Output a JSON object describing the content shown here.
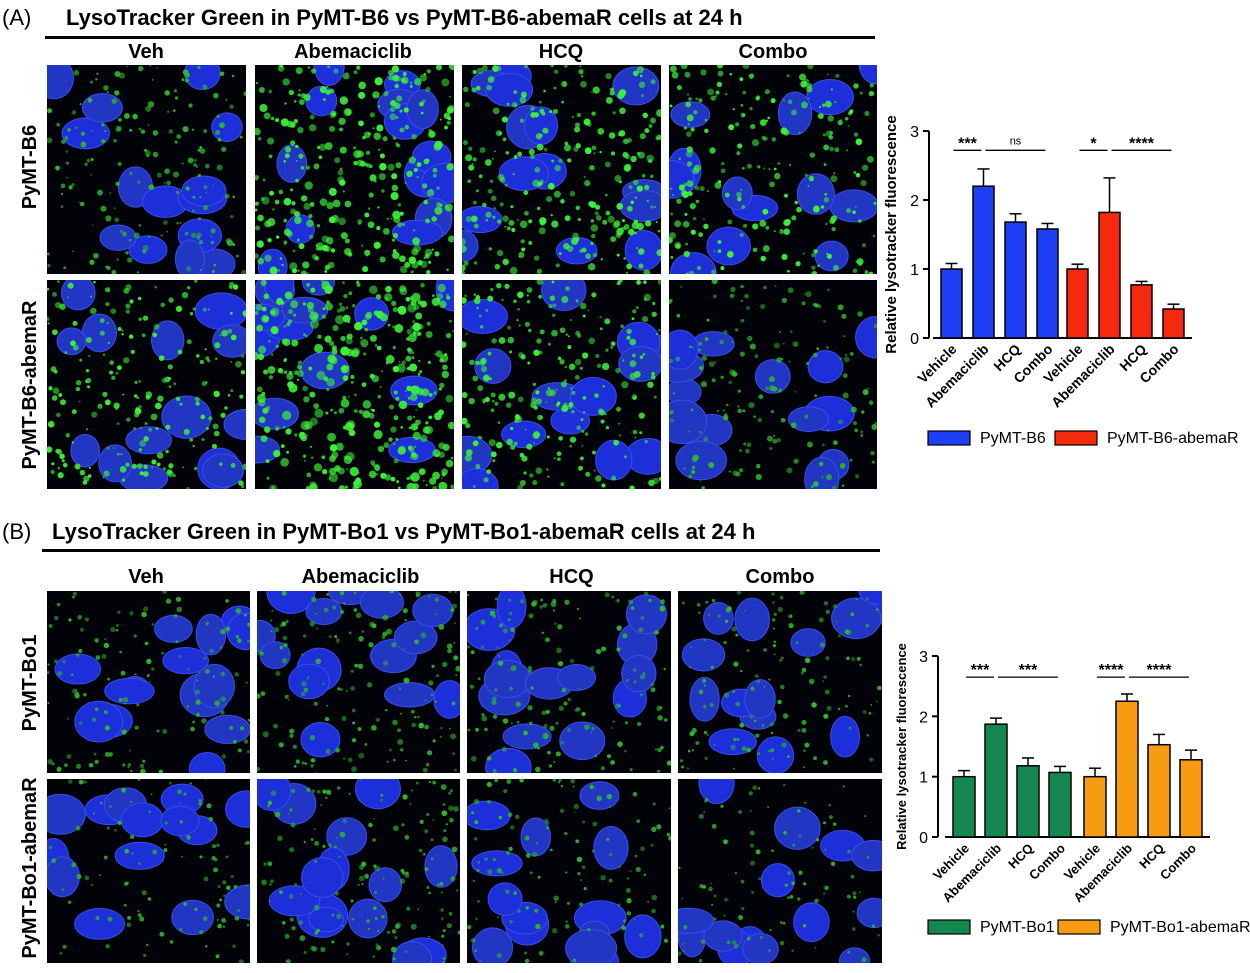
{
  "panelA": {
    "label": "(A)",
    "title": "LysoTracker Green in PyMT-B6 vs PyMT-B6-abemaR cells at 24 h",
    "columns": [
      "Veh",
      "Abemaciclib",
      "HCQ",
      "Combo"
    ],
    "rows": [
      "PyMT-B6",
      "PyMT-B6-abemaR"
    ]
  },
  "panelB": {
    "label": "(B)",
    "title": "LysoTracker Green in PyMT-Bo1 vs PyMT-Bo1-abemaR cells at 24 h",
    "columns": [
      "Veh",
      "Abemaciclib",
      "HCQ",
      "Combo"
    ],
    "rows": [
      "PyMT-Bo1",
      "PyMT-Bo1-abemaR"
    ]
  },
  "chart_data": [
    {
      "type": "bar",
      "ylabel": "Relative lysotracker fluorescence",
      "ylim": [
        0,
        3
      ],
      "yticks": [
        0,
        1,
        2,
        3
      ],
      "categories": [
        "Vehicle",
        "Abemaciclib",
        "HCQ",
        "Combo"
      ],
      "series": [
        {
          "name": "PyMT-B6",
          "color": "#1f3ff5",
          "values": [
            1.0,
            2.2,
            1.68,
            1.58
          ],
          "errors": [
            0.08,
            0.25,
            0.12,
            0.08
          ]
        },
        {
          "name": "PyMT-B6-abemaR",
          "color": "#f52a0c",
          "values": [
            1.0,
            1.82,
            0.77,
            0.42
          ],
          "errors": [
            0.07,
            0.5,
            0.05,
            0.07
          ]
        }
      ],
      "significance": [
        {
          "series": 0,
          "from": 0,
          "to": 1,
          "label": "***",
          "y": 2.72
        },
        {
          "series": 0,
          "from": 1,
          "to": 3,
          "label": "ns",
          "y": 2.72
        },
        {
          "series": 1,
          "from": 0,
          "to": 1,
          "label": "*",
          "y": 2.72
        },
        {
          "series": 1,
          "from": 1,
          "to": 3,
          "label": "****",
          "y": 2.72
        }
      ]
    },
    {
      "type": "bar",
      "ylabel": "Relative lysotracker fluorescence",
      "ylim": [
        0,
        3
      ],
      "yticks": [
        0,
        1,
        2,
        3
      ],
      "categories": [
        "Vehicle",
        "Abemaciclib",
        "HCQ",
        "Combo"
      ],
      "series": [
        {
          "name": "PyMT-Bo1",
          "color": "#14874f",
          "values": [
            1.0,
            1.87,
            1.18,
            1.07
          ],
          "errors": [
            0.1,
            0.1,
            0.13,
            0.1
          ]
        },
        {
          "name": "PyMT-Bo1-abemaR",
          "color": "#f79b12",
          "values": [
            1.0,
            2.25,
            1.53,
            1.28
          ],
          "errors": [
            0.14,
            0.12,
            0.17,
            0.16
          ]
        }
      ],
      "significance": [
        {
          "series": 0,
          "from": 0,
          "to": 1,
          "label": "***",
          "y": 2.65
        },
        {
          "series": 0,
          "from": 1,
          "to": 3,
          "label": "***",
          "y": 2.65
        },
        {
          "series": 1,
          "from": 0,
          "to": 1,
          "label": "****",
          "y": 2.65
        },
        {
          "series": 1,
          "from": 1,
          "to": 3,
          "label": "****",
          "y": 2.65
        }
      ]
    }
  ]
}
